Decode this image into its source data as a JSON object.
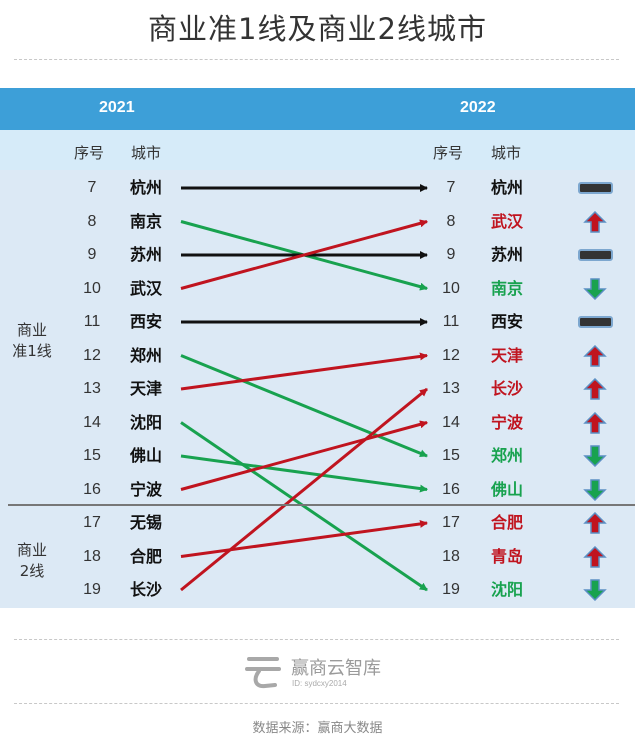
{
  "title": "商业准1线及商业2线城市",
  "header": {
    "year_left": "2021",
    "year_right": "2022"
  },
  "columns": {
    "rank": "序号",
    "city": "城市"
  },
  "groups": {
    "tier1": "商业\n准1线",
    "tier2": "商业\n2线"
  },
  "colors": {
    "same": "#111111",
    "up": "#c0141f",
    "down": "#18a24f",
    "header_bar": "#3d9fd8"
  },
  "chart_data": {
    "type": "slope",
    "left_year": "2021",
    "right_year": "2022",
    "left": [
      {
        "rank": "7",
        "city": "杭州"
      },
      {
        "rank": "8",
        "city": "南京"
      },
      {
        "rank": "9",
        "city": "苏州"
      },
      {
        "rank": "10",
        "city": "武汉"
      },
      {
        "rank": "11",
        "city": "西安"
      },
      {
        "rank": "12",
        "city": "郑州"
      },
      {
        "rank": "13",
        "city": "天津"
      },
      {
        "rank": "14",
        "city": "沈阳"
      },
      {
        "rank": "15",
        "city": "佛山"
      },
      {
        "rank": "16",
        "city": "宁波"
      },
      {
        "rank": "17",
        "city": "无锡"
      },
      {
        "rank": "18",
        "city": "合肥"
      },
      {
        "rank": "19",
        "city": "长沙"
      }
    ],
    "right": [
      {
        "rank": "7",
        "city": "杭州",
        "change": "same"
      },
      {
        "rank": "8",
        "city": "武汉",
        "change": "up"
      },
      {
        "rank": "9",
        "city": "苏州",
        "change": "same"
      },
      {
        "rank": "10",
        "city": "南京",
        "change": "down"
      },
      {
        "rank": "11",
        "city": "西安",
        "change": "same"
      },
      {
        "rank": "12",
        "city": "天津",
        "change": "up"
      },
      {
        "rank": "13",
        "city": "长沙",
        "change": "up"
      },
      {
        "rank": "14",
        "city": "宁波",
        "change": "up"
      },
      {
        "rank": "15",
        "city": "郑州",
        "change": "down"
      },
      {
        "rank": "16",
        "city": "佛山",
        "change": "down"
      },
      {
        "rank": "17",
        "city": "合肥",
        "change": "up"
      },
      {
        "rank": "18",
        "city": "青岛",
        "change": "up"
      },
      {
        "rank": "19",
        "city": "沈阳",
        "change": "down"
      }
    ],
    "links": [
      {
        "from": 7,
        "to": 7,
        "change": "same"
      },
      {
        "from": 8,
        "to": 10,
        "change": "down"
      },
      {
        "from": 9,
        "to": 9,
        "change": "same"
      },
      {
        "from": 10,
        "to": 8,
        "change": "up"
      },
      {
        "from": 11,
        "to": 11,
        "change": "same"
      },
      {
        "from": 12,
        "to": 15,
        "change": "down"
      },
      {
        "from": 13,
        "to": 12,
        "change": "up"
      },
      {
        "from": 14,
        "to": 19,
        "change": "down"
      },
      {
        "from": 15,
        "to": 16,
        "change": "down"
      },
      {
        "from": 16,
        "to": 14,
        "change": "up"
      },
      {
        "from": 18,
        "to": 17,
        "change": "up"
      },
      {
        "from": 19,
        "to": 13,
        "change": "up"
      }
    ]
  },
  "logo": {
    "name": "赢商云智库",
    "id": "ID: sydcxy2014"
  },
  "source": "数据来源：赢商大数据"
}
